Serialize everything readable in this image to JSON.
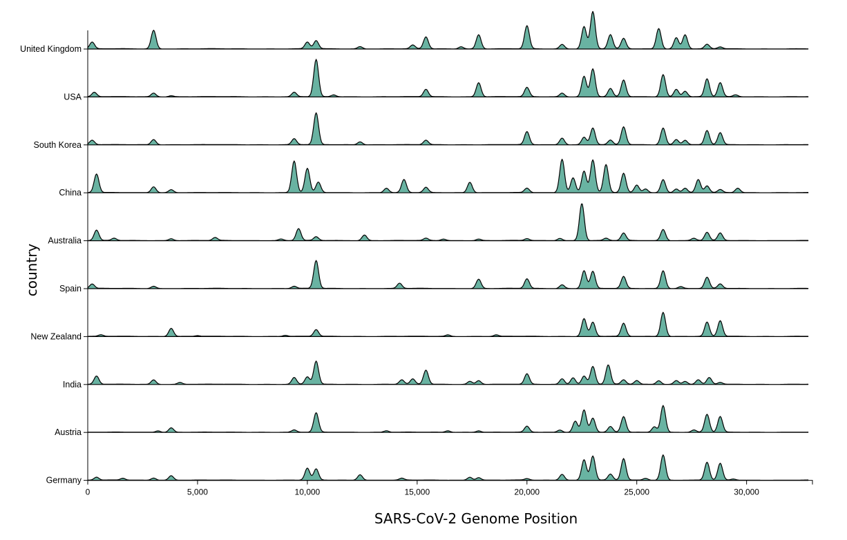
{
  "chart_data": {
    "type": "ridgeline",
    "xlabel": "SARS-CoV-2 Genome Position",
    "ylabel": "country",
    "xlim": [
      0,
      33000
    ],
    "xticks": [
      0,
      5000,
      10000,
      15000,
      20000,
      25000,
      30000
    ],
    "xtick_labels": [
      "0",
      "5,000",
      "10,000",
      "15,000",
      "20,000",
      "25,000",
      "30,000"
    ],
    "fill_color": "#69b3a2",
    "series": [
      {
        "name": "United Kingdom",
        "peaks": [
          [
            200,
            0.18
          ],
          [
            3000,
            0.5
          ],
          [
            10000,
            0.18
          ],
          [
            10400,
            0.22
          ],
          [
            12400,
            0.06
          ],
          [
            14800,
            0.1
          ],
          [
            15400,
            0.32
          ],
          [
            17000,
            0.06
          ],
          [
            17800,
            0.38
          ],
          [
            20000,
            0.62
          ],
          [
            21600,
            0.12
          ],
          [
            22600,
            0.6
          ],
          [
            23000,
            1.0
          ],
          [
            23800,
            0.38
          ],
          [
            24400,
            0.28
          ],
          [
            26000,
            0.55
          ],
          [
            26800,
            0.3
          ],
          [
            27200,
            0.38
          ],
          [
            28200,
            0.12
          ],
          [
            28800,
            0.05
          ]
        ]
      },
      {
        "name": "USA",
        "peaks": [
          [
            300,
            0.12
          ],
          [
            3000,
            0.1
          ],
          [
            3800,
            0.03
          ],
          [
            9400,
            0.12
          ],
          [
            10400,
            1.0
          ],
          [
            11200,
            0.05
          ],
          [
            15400,
            0.2
          ],
          [
            17800,
            0.38
          ],
          [
            20000,
            0.25
          ],
          [
            21600,
            0.1
          ],
          [
            22600,
            0.55
          ],
          [
            23000,
            0.75
          ],
          [
            23800,
            0.22
          ],
          [
            24400,
            0.45
          ],
          [
            26200,
            0.6
          ],
          [
            26800,
            0.2
          ],
          [
            27200,
            0.15
          ],
          [
            28200,
            0.48
          ],
          [
            28800,
            0.38
          ],
          [
            29500,
            0.05
          ]
        ]
      },
      {
        "name": "South Korea",
        "peaks": [
          [
            200,
            0.12
          ],
          [
            3000,
            0.14
          ],
          [
            9400,
            0.16
          ],
          [
            10400,
            0.85
          ],
          [
            12400,
            0.08
          ],
          [
            15400,
            0.12
          ],
          [
            20000,
            0.35
          ],
          [
            21600,
            0.18
          ],
          [
            22600,
            0.2
          ],
          [
            23000,
            0.45
          ],
          [
            23800,
            0.12
          ],
          [
            24400,
            0.48
          ],
          [
            26200,
            0.45
          ],
          [
            26800,
            0.14
          ],
          [
            27200,
            0.12
          ],
          [
            28200,
            0.38
          ],
          [
            28800,
            0.32
          ]
        ]
      },
      {
        "name": "China",
        "peaks": [
          [
            400,
            0.5
          ],
          [
            3000,
            0.16
          ],
          [
            3800,
            0.08
          ],
          [
            9400,
            0.85
          ],
          [
            10000,
            0.65
          ],
          [
            10500,
            0.28
          ],
          [
            13600,
            0.12
          ],
          [
            14400,
            0.35
          ],
          [
            15400,
            0.14
          ],
          [
            17400,
            0.28
          ],
          [
            20000,
            0.12
          ],
          [
            21600,
            0.9
          ],
          [
            22100,
            0.4
          ],
          [
            22600,
            0.58
          ],
          [
            23000,
            0.88
          ],
          [
            23600,
            0.75
          ],
          [
            24400,
            0.52
          ],
          [
            25000,
            0.2
          ],
          [
            25400,
            0.1
          ],
          [
            26200,
            0.35
          ],
          [
            26800,
            0.1
          ],
          [
            27200,
            0.12
          ],
          [
            27800,
            0.35
          ],
          [
            28200,
            0.18
          ],
          [
            28800,
            0.08
          ],
          [
            29600,
            0.12
          ]
        ]
      },
      {
        "name": "Australia",
        "peaks": [
          [
            400,
            0.28
          ],
          [
            1200,
            0.06
          ],
          [
            3800,
            0.05
          ],
          [
            5800,
            0.08
          ],
          [
            8800,
            0.04
          ],
          [
            9600,
            0.32
          ],
          [
            10400,
            0.1
          ],
          [
            12600,
            0.15
          ],
          [
            15400,
            0.06
          ],
          [
            16200,
            0.04
          ],
          [
            17800,
            0.04
          ],
          [
            20000,
            0.05
          ],
          [
            21500,
            0.06
          ],
          [
            22500,
            1.0
          ],
          [
            23600,
            0.06
          ],
          [
            24400,
            0.2
          ],
          [
            26200,
            0.3
          ],
          [
            27600,
            0.06
          ],
          [
            28200,
            0.22
          ],
          [
            28800,
            0.2
          ]
        ]
      },
      {
        "name": "Spain",
        "peaks": [
          [
            200,
            0.12
          ],
          [
            3000,
            0.06
          ],
          [
            9400,
            0.06
          ],
          [
            10400,
            0.75
          ],
          [
            14200,
            0.14
          ],
          [
            17800,
            0.25
          ],
          [
            20000,
            0.26
          ],
          [
            21600,
            0.1
          ],
          [
            22600,
            0.48
          ],
          [
            23000,
            0.46
          ],
          [
            24400,
            0.32
          ],
          [
            26200,
            0.48
          ],
          [
            27000,
            0.05
          ],
          [
            28200,
            0.3
          ],
          [
            28800,
            0.12
          ]
        ]
      },
      {
        "name": "New Zealand",
        "peaks": [
          [
            600,
            0.04
          ],
          [
            3800,
            0.22
          ],
          [
            5000,
            0.02
          ],
          [
            9000,
            0.03
          ],
          [
            10400,
            0.18
          ],
          [
            16400,
            0.04
          ],
          [
            18600,
            0.04
          ],
          [
            22600,
            0.48
          ],
          [
            23000,
            0.38
          ],
          [
            24400,
            0.35
          ],
          [
            26200,
            0.65
          ],
          [
            28200,
            0.38
          ],
          [
            28800,
            0.42
          ]
        ]
      },
      {
        "name": "India",
        "peaks": [
          [
            400,
            0.22
          ],
          [
            3000,
            0.12
          ],
          [
            4200,
            0.05
          ],
          [
            9400,
            0.18
          ],
          [
            10000,
            0.2
          ],
          [
            10400,
            0.62
          ],
          [
            14300,
            0.12
          ],
          [
            14800,
            0.14
          ],
          [
            15400,
            0.38
          ],
          [
            17400,
            0.08
          ],
          [
            17800,
            0.1
          ],
          [
            20000,
            0.28
          ],
          [
            21600,
            0.15
          ],
          [
            22100,
            0.18
          ],
          [
            22600,
            0.22
          ],
          [
            23000,
            0.48
          ],
          [
            23700,
            0.52
          ],
          [
            24400,
            0.12
          ],
          [
            25000,
            0.1
          ],
          [
            26000,
            0.1
          ],
          [
            26800,
            0.1
          ],
          [
            27200,
            0.08
          ],
          [
            27800,
            0.12
          ],
          [
            28300,
            0.18
          ],
          [
            28800,
            0.05
          ]
        ]
      },
      {
        "name": "Austria",
        "peaks": [
          [
            3200,
            0.04
          ],
          [
            3800,
            0.12
          ],
          [
            9400,
            0.06
          ],
          [
            10400,
            0.52
          ],
          [
            13600,
            0.04
          ],
          [
            16400,
            0.04
          ],
          [
            17800,
            0.04
          ],
          [
            20000,
            0.16
          ],
          [
            21500,
            0.06
          ],
          [
            22200,
            0.3
          ],
          [
            22600,
            0.6
          ],
          [
            23000,
            0.38
          ],
          [
            23800,
            0.15
          ],
          [
            24400,
            0.42
          ],
          [
            25800,
            0.15
          ],
          [
            26200,
            0.72
          ],
          [
            27600,
            0.06
          ],
          [
            28200,
            0.48
          ],
          [
            28800,
            0.42
          ]
        ]
      },
      {
        "name": "Germany",
        "peaks": [
          [
            400,
            0.08
          ],
          [
            1600,
            0.05
          ],
          [
            3000,
            0.06
          ],
          [
            3800,
            0.12
          ],
          [
            10000,
            0.32
          ],
          [
            10400,
            0.3
          ],
          [
            12400,
            0.15
          ],
          [
            14300,
            0.05
          ],
          [
            17400,
            0.08
          ],
          [
            17800,
            0.07
          ],
          [
            20000,
            0.04
          ],
          [
            21600,
            0.16
          ],
          [
            22600,
            0.55
          ],
          [
            23000,
            0.65
          ],
          [
            23800,
            0.16
          ],
          [
            24400,
            0.58
          ],
          [
            25400,
            0.05
          ],
          [
            26200,
            0.68
          ],
          [
            28200,
            0.48
          ],
          [
            28800,
            0.45
          ],
          [
            29400,
            0.03
          ]
        ]
      }
    ]
  }
}
